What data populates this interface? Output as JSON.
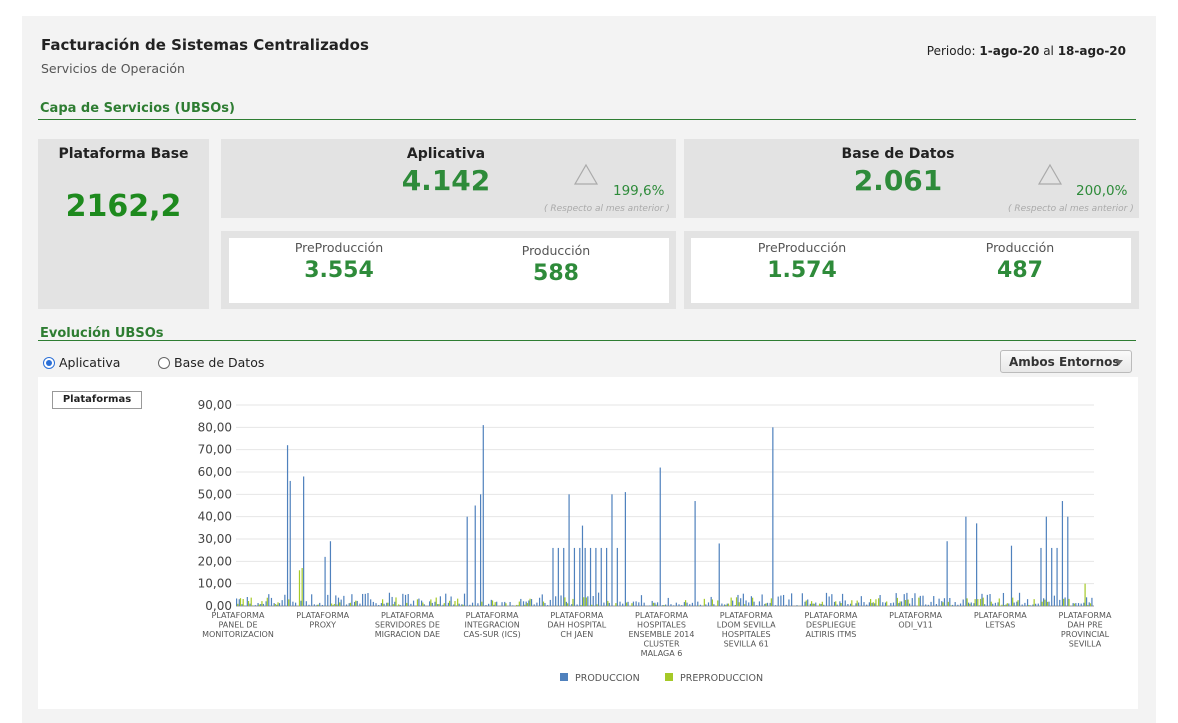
{
  "header": {
    "title": "Facturación de Sistemas Centralizados",
    "subtitle": "Servicios de Operación",
    "period_label": "Periodo:",
    "period_from": "1-ago-20",
    "period_sep": "al",
    "period_to": "18-ago-20"
  },
  "capa": {
    "section_title": "Capa de Servicios (UBSOs)",
    "plataforma_base": {
      "label": "Plataforma Base",
      "value": "2162,2"
    },
    "aplicativa": {
      "label": "Aplicativa",
      "value": "4.142",
      "pct": "199,6%",
      "note": "( Respecto al mes anterior )",
      "pre_label": "PreProducción",
      "pre_value": "3.554",
      "prod_label": "Producción",
      "prod_value": "588"
    },
    "base_datos": {
      "label": "Base de Datos",
      "value": "2.061",
      "pct": "200,0%",
      "note": "( Respecto al mes anterior )",
      "pre_label": "PreProducción",
      "pre_value": "1.574",
      "prod_label": "Producción",
      "prod_value": "487"
    }
  },
  "evolucion": {
    "section_title": "Evolución UBSOs",
    "radio_aplicativa": "Aplicativa",
    "radio_base_datos": "Base de Datos",
    "selected": "aplicativa",
    "entornos_select": "Ambos Entornos",
    "plataformas_button": "Plataformas"
  },
  "colors": {
    "green": "#2e8b3a",
    "section_green": "#2e7d32",
    "produccion": "#4f81bd",
    "preproduccion": "#a5c928"
  },
  "chart_data": {
    "type": "bar",
    "ylim": [
      0,
      90
    ],
    "yticks": [
      "0,00",
      "10,00",
      "20,00",
      "30,00",
      "40,00",
      "50,00",
      "60,00",
      "70,00",
      "80,00",
      "90,00"
    ],
    "categories": [
      "PLATAFORMA PANEL DE MONITORIZACION",
      "PLATAFORMA PROXY",
      "PLATAFORMA SERVIDORES DE MIGRACION DAE",
      "PLATAFORMA INTEGRACION CAS-SUR (ICS)",
      "PLATAFORMA DAH HOSPITAL CH JAEN",
      "PLATAFORMA HOSPITALES ENSEMBLE 2014 CLUSTER MALAGA 6",
      "PLATAFORMA LDOM SEVILLA HOSPITALES SEVILLA 61",
      "PLATAFORMA DESPLIEGUE ALTIRIS ITMS",
      "PLATAFORMA ODI_V11",
      "PLATAFORMA LETSAS",
      "PLATAFORMA DAH PRE PROVINCIAL SEVILLA"
    ],
    "category_lines": [
      [
        "PLATAFORMA",
        "PANEL DE",
        "MONITORIZACION"
      ],
      [
        "PLATAFORMA",
        "PROXY"
      ],
      [
        "PLATAFORMA",
        "SERVIDORES DE",
        "MIGRACION DAE"
      ],
      [
        "PLATAFORMA",
        "INTEGRACION",
        "CAS-SUR (ICS)"
      ],
      [
        "PLATAFORMA",
        "DAH HOSPITAL",
        "CH JAEN"
      ],
      [
        "PLATAFORMA",
        "HOSPITALES",
        "ENSEMBLE 2014",
        "CLUSTER",
        "MALAGA 6"
      ],
      [
        "PLATAFORMA",
        "LDOM SEVILLA",
        "HOSPITALES",
        "SEVILLA 61"
      ],
      [
        "PLATAFORMA",
        "DESPLIEGUE",
        "ALTIRIS ITMS"
      ],
      [
        "PLATAFORMA",
        "ODI_V11"
      ],
      [
        "PLATAFORMA",
        "LETSAS"
      ],
      [
        "PLATAFORMA",
        "DAH PRE",
        "PROVINCIAL",
        "SEVILLA"
      ]
    ],
    "series": [
      {
        "name": "PRODUCCION",
        "color": "#4f81bd"
      },
      {
        "name": "PREPRODUCCION",
        "color": "#a5c928"
      }
    ],
    "peaks_produccion": [
      {
        "x": 0.06,
        "y": 72
      },
      {
        "x": 0.065,
        "y": 56
      },
      {
        "x": 0.08,
        "y": 58
      },
      {
        "x": 0.105,
        "y": 22
      },
      {
        "x": 0.11,
        "y": 29
      },
      {
        "x": 0.27,
        "y": 40
      },
      {
        "x": 0.28,
        "y": 45
      },
      {
        "x": 0.285,
        "y": 50
      },
      {
        "x": 0.29,
        "y": 81
      },
      {
        "x": 0.39,
        "y": 50
      },
      {
        "x": 0.405,
        "y": 36
      },
      {
        "x": 0.44,
        "y": 50
      },
      {
        "x": 0.455,
        "y": 51
      },
      {
        "x": 0.495,
        "y": 62
      },
      {
        "x": 0.535,
        "y": 47
      },
      {
        "x": 0.565,
        "y": 28
      },
      {
        "x": 0.625,
        "y": 80
      },
      {
        "x": 0.83,
        "y": 29
      },
      {
        "x": 0.85,
        "y": 40
      },
      {
        "x": 0.865,
        "y": 37
      },
      {
        "x": 0.905,
        "y": 27
      },
      {
        "x": 0.945,
        "y": 40
      },
      {
        "x": 0.965,
        "y": 47
      },
      {
        "x": 0.97,
        "y": 40
      }
    ],
    "peaks_preproduccion": [
      {
        "x": 0.072,
        "y": 16
      },
      {
        "x": 0.075,
        "y": 20
      },
      {
        "x": 0.078,
        "y": 17
      },
      {
        "x": 0.99,
        "y": 10
      }
    ]
  }
}
